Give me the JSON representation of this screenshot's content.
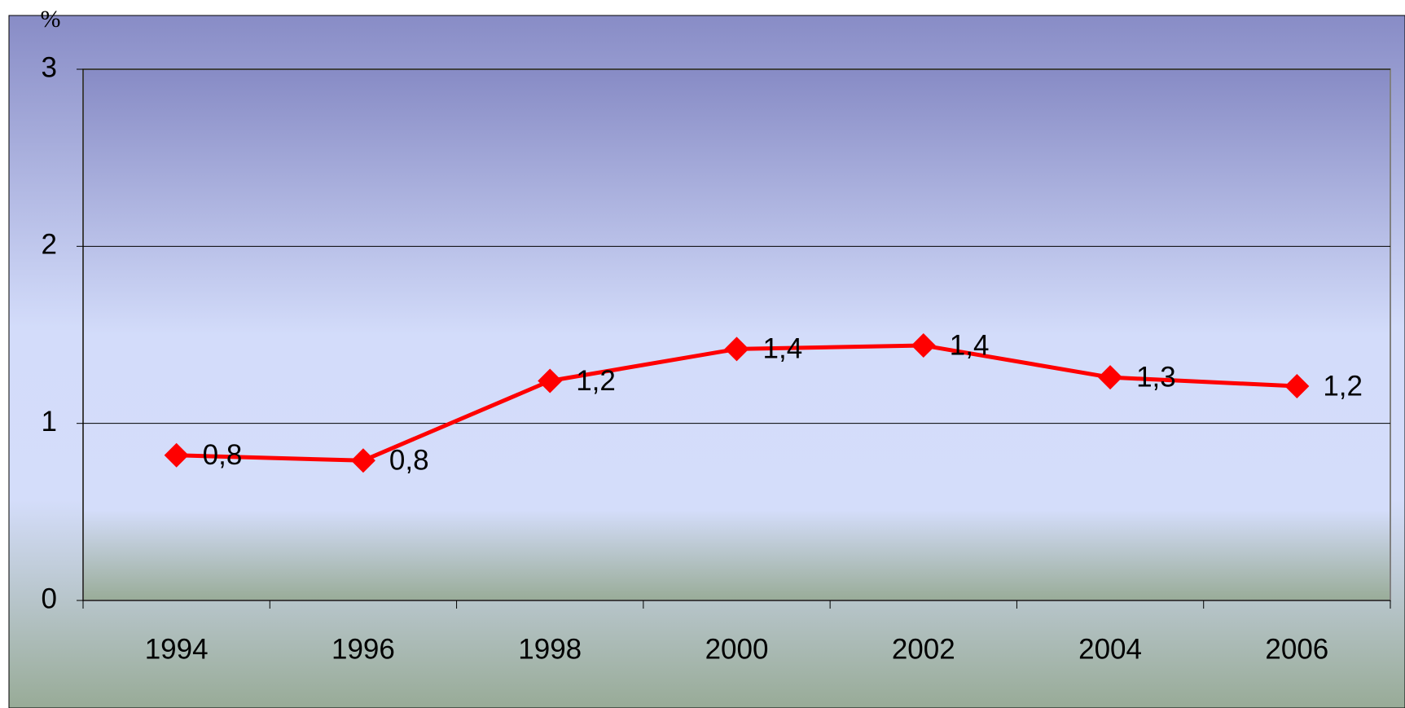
{
  "chart_data": {
    "type": "line",
    "y_label": "%",
    "categories": [
      "1994",
      "1996",
      "1998",
      "2000",
      "2002",
      "2004",
      "2006"
    ],
    "values": [
      0.82,
      0.79,
      1.24,
      1.42,
      1.44,
      1.26,
      1.21
    ],
    "value_labels": [
      "0,8",
      "0,8",
      "1,2",
      "1,4",
      "1,4",
      "1,3",
      "1,2"
    ],
    "color": "#ff0000",
    "ylim": [
      0,
      3
    ],
    "yticks": [
      0,
      1,
      2,
      3
    ],
    "grid": true
  }
}
